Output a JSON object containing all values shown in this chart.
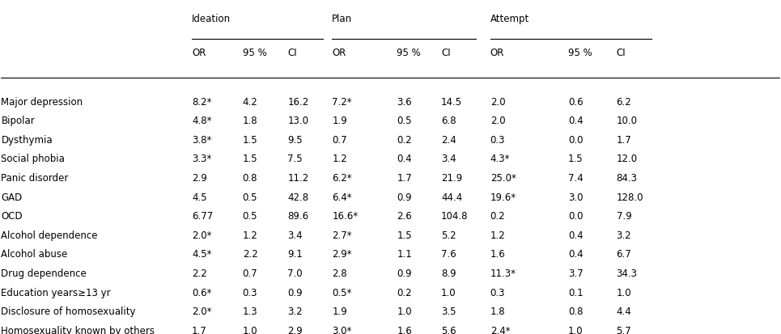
{
  "headers_group": [
    "Ideation",
    "Plan",
    "Attempt"
  ],
  "headers_sub": [
    "OR",
    "95 %",
    "CI"
  ],
  "rows": [
    [
      "Major depression",
      "8.2*",
      "4.2",
      "16.2",
      "7.2*",
      "3.6",
      "14.5",
      "2.0",
      "0.6",
      "6.2"
    ],
    [
      "Bipolar",
      "4.8*",
      "1.8",
      "13.0",
      "1.9",
      "0.5",
      "6.8",
      "2.0",
      "0.4",
      "10.0"
    ],
    [
      "Dysthymia",
      "3.8*",
      "1.5",
      "9.5",
      "0.7",
      "0.2",
      "2.4",
      "0.3",
      "0.0",
      "1.7"
    ],
    [
      "Social phobia",
      "3.3*",
      "1.5",
      "7.5",
      "1.2",
      "0.4",
      "3.4",
      "4.3*",
      "1.5",
      "12.0"
    ],
    [
      "Panic disorder",
      "2.9",
      "0.8",
      "11.2",
      "6.2*",
      "1.7",
      "21.9",
      "25.0*",
      "7.4",
      "84.3"
    ],
    [
      "GAD",
      "4.5",
      "0.5",
      "42.8",
      "6.4*",
      "0.9",
      "44.4",
      "19.6*",
      "3.0",
      "128.0"
    ],
    [
      "OCD",
      "6.77",
      "0.5",
      "89.6",
      "16.6*",
      "2.6",
      "104.8",
      "0.2",
      "0.0",
      "7.9"
    ],
    [
      "Alcohol dependence",
      "2.0*",
      "1.2",
      "3.4",
      "2.7*",
      "1.5",
      "5.2",
      "1.2",
      "0.4",
      "3.2"
    ],
    [
      "Alcohol abuse",
      "4.5*",
      "2.2",
      "9.1",
      "2.9*",
      "1.1",
      "7.6",
      "1.6",
      "0.4",
      "6.7"
    ],
    [
      "Drug dependence",
      "2.2",
      "0.7",
      "7.0",
      "2.8",
      "0.9",
      "8.9",
      "11.3*",
      "3.7",
      "34.3"
    ],
    [
      "Education years≥13 yr",
      "0.6*",
      "0.3",
      "0.9",
      "0.5*",
      "0.2",
      "1.0",
      "0.3",
      "0.1",
      "1.0"
    ],
    [
      "Disclosure of homosexuality",
      "2.0*",
      "1.3",
      "3.2",
      "1.9",
      "1.0",
      "3.5",
      "1.8",
      "0.8",
      "4.4"
    ],
    [
      "Homosexuality known by others",
      "1.7",
      "1.0",
      "2.9",
      "3.0*",
      "1.6",
      "5.6",
      "2.4*",
      "1.0",
      "5.7"
    ]
  ],
  "bg_color": "#ffffff",
  "text_color": "#000000",
  "header_line_color": "#000000",
  "font_size": 8.5,
  "header_font_size": 8.5
}
